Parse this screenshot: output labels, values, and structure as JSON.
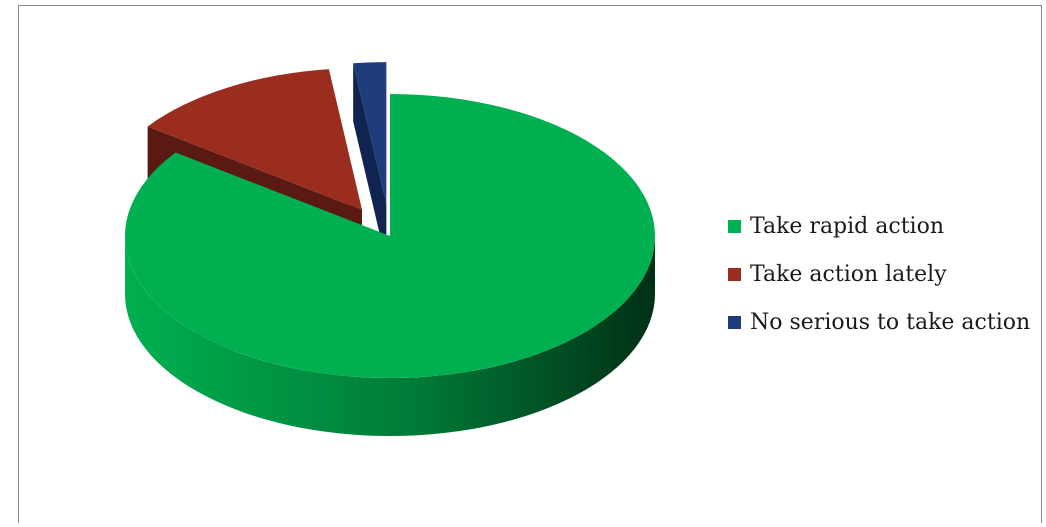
{
  "chart_data": {
    "type": "pie",
    "style": "3d-exploded",
    "categories": [
      "Take rapid action",
      "Take action lately",
      "No serious to take action"
    ],
    "values": [
      85,
      13,
      2
    ],
    "colors": [
      "#00b050",
      "#9b2d1f",
      "#1f3d7a"
    ],
    "side_colors": [
      "#007a37",
      "#5a1912",
      "#0f2450"
    ],
    "legend_position": "right",
    "title": ""
  }
}
